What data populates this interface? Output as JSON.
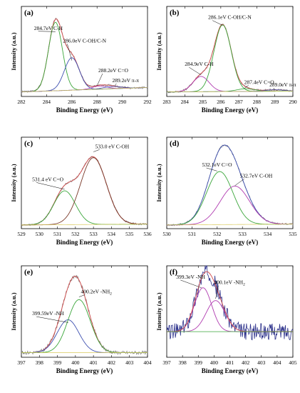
{
  "chart_data": [
    {
      "type": "line",
      "panel_label": "(a)",
      "xlabel": "Binding Energy (eV)",
      "ylabel": "Intensity (a.u.)",
      "xlim": [
        282,
        292
      ],
      "xticks": [
        "282",
        "284",
        "286",
        "288",
        "290",
        "292"
      ],
      "series": [
        {
          "name": "raw",
          "color": "#808080",
          "width": 0.7,
          "noise": 0.012,
          "peaks": [
            [
              284.7,
              0.76,
              0.55
            ],
            [
              286.0,
              0.36,
              0.6
            ],
            [
              288.2,
              0.035,
              0.6
            ],
            [
              289.2,
              0.025,
              0.7
            ]
          ],
          "baseline": [
            0.05,
            0.1
          ]
        },
        {
          "name": "envelope",
          "color": "#d24a4a",
          "width": 0.9,
          "peaks": [
            [
              284.7,
              0.76,
              0.55
            ],
            [
              286.0,
              0.36,
              0.6
            ],
            [
              288.2,
              0.035,
              0.6
            ],
            [
              289.2,
              0.025,
              0.7
            ]
          ],
          "baseline": [
            0.05,
            0.1
          ]
        },
        {
          "name": "C-H",
          "color": "#3aa63a",
          "width": 0.9,
          "peaks": [
            [
              284.7,
              0.76,
              0.55
            ]
          ],
          "baseline": [
            0.05,
            0.1
          ]
        },
        {
          "name": "C-OH/C-N",
          "color": "#3d4fb0",
          "width": 0.9,
          "peaks": [
            [
              286.0,
              0.36,
              0.6
            ]
          ],
          "baseline": [
            0.05,
            0.1
          ]
        },
        {
          "name": "C=O",
          "color": "#b03bb0",
          "width": 0.8,
          "peaks": [
            [
              288.2,
              0.035,
              0.6
            ]
          ],
          "baseline": [
            0.05,
            0.1
          ]
        },
        {
          "name": "π-π",
          "color": "#3d4fb0",
          "width": 0.8,
          "peaks": [
            [
              289.2,
              0.025,
              0.7
            ]
          ],
          "baseline": [
            0.05,
            0.1
          ]
        },
        {
          "name": "background",
          "color": "#d9c95a",
          "width": 0.7,
          "peaks": [],
          "baseline": [
            0.05,
            0.1
          ]
        }
      ],
      "annotations": [
        {
          "text": "284.7eV C-H",
          "x": 284.7,
          "y": 0.72,
          "tx": 283.0,
          "ty": 0.74
        },
        {
          "text": "286.0eV C-OH/C-N",
          "x": 286.0,
          "y": 0.4,
          "tx": 285.3,
          "ty": 0.6
        },
        {
          "text": "288.2eV C=O",
          "x": 288.0,
          "y": 0.12,
          "tx": 288.1,
          "ty": 0.27
        },
        {
          "text": "289.2eV π-π",
          "x": 289.4,
          "y": 0.12,
          "tx": 289.2,
          "ty": 0.16
        }
      ]
    },
    {
      "type": "line",
      "panel_label": "(b)",
      "xlabel": "Binding Energy (eV)",
      "ylabel": "Intensity (a.u.)",
      "xlim": [
        283,
        290
      ],
      "xticks": [
        "283",
        "284",
        "285",
        "286",
        "287",
        "288",
        "289",
        "290"
      ],
      "series": [
        {
          "name": "raw",
          "color": "#808080",
          "width": 0.7,
          "noise": 0.012,
          "peaks": [
            [
              284.9,
              0.17,
              0.45
            ],
            [
              286.1,
              0.74,
              0.48
            ],
            [
              287.4,
              0.03,
              0.5
            ],
            [
              289.0,
              0.015,
              0.5
            ]
          ],
          "baseline": [
            0.05,
            0.06
          ]
        },
        {
          "name": "envelope",
          "color": "#d24a4a",
          "width": 0.9,
          "peaks": [
            [
              284.9,
              0.17,
              0.45
            ],
            [
              286.1,
              0.74,
              0.48
            ],
            [
              287.4,
              0.03,
              0.5
            ],
            [
              289.0,
              0.015,
              0.5
            ]
          ],
          "baseline": [
            0.05,
            0.06
          ]
        },
        {
          "name": "C-H",
          "color": "#b03bb0",
          "width": 0.9,
          "peaks": [
            [
              284.9,
              0.17,
              0.45
            ]
          ],
          "baseline": [
            0.05,
            0.06
          ]
        },
        {
          "name": "C-OH/C-N",
          "color": "#3aa63a",
          "width": 0.9,
          "peaks": [
            [
              286.1,
              0.74,
              0.48
            ]
          ],
          "baseline": [
            0.05,
            0.06
          ]
        },
        {
          "name": "C=O",
          "color": "#3aa63a",
          "width": 0.8,
          "peaks": [
            [
              287.4,
              0.03,
              0.5
            ]
          ],
          "baseline": [
            0.05,
            0.06
          ]
        },
        {
          "name": "π-π",
          "color": "#3d4fb0",
          "width": 0.8,
          "peaks": [
            [
              289.0,
              0.015,
              0.5
            ]
          ],
          "baseline": [
            0.05,
            0.06
          ]
        },
        {
          "name": "background",
          "color": "#d9c95a",
          "width": 0.7,
          "peaks": [],
          "baseline": [
            0.05,
            0.06
          ]
        }
      ],
      "annotations": [
        {
          "text": "286.1eV C-OH/C-N",
          "x": 286.1,
          "y": 0.79,
          "tx": 285.3,
          "ty": 0.86
        },
        {
          "text": "284.9eV C-H",
          "x": 284.9,
          "y": 0.24,
          "tx": 284.0,
          "ty": 0.34
        },
        {
          "text": "287.4eV C=O",
          "x": 287.3,
          "y": 0.09,
          "tx": 287.3,
          "ty": 0.14
        },
        {
          "text": "289.0eV π-π",
          "x": 289.0,
          "y": 0.07,
          "tx": 288.7,
          "ty": 0.11
        }
      ]
    },
    {
      "type": "line",
      "panel_label": "(c)",
      "xlabel": "Binding Energy (eV)",
      "ylabel": "Intensity (a.u.)",
      "xlim": [
        529,
        536
      ],
      "xticks": [
        "529",
        "530",
        "531",
        "532",
        "533",
        "534",
        "535",
        "536"
      ],
      "series": [
        {
          "name": "raw",
          "color": "#808080",
          "width": 0.7,
          "noise": 0.01,
          "peaks": [
            [
              531.4,
              0.37,
              0.6
            ],
            [
              533.0,
              0.73,
              0.72
            ]
          ],
          "baseline": [
            0.04,
            0.05
          ]
        },
        {
          "name": "envelope",
          "color": "#d24a4a",
          "width": 0.9,
          "peaks": [
            [
              531.4,
              0.37,
              0.6
            ],
            [
              533.0,
              0.73,
              0.72
            ]
          ],
          "baseline": [
            0.04,
            0.05
          ]
        },
        {
          "name": "C=O",
          "color": "#3aa63a",
          "width": 0.9,
          "peaks": [
            [
              531.4,
              0.37,
              0.6
            ]
          ],
          "baseline": [
            0.04,
            0.05
          ]
        },
        {
          "name": "C-OH",
          "color": "#7a3a2a",
          "width": 0.9,
          "peaks": [
            [
              533.0,
              0.73,
              0.72
            ]
          ],
          "baseline": [
            0.04,
            0.05
          ]
        },
        {
          "name": "background",
          "color": "#d9c95a",
          "width": 0.7,
          "peaks": [],
          "baseline": [
            0.04,
            0.05
          ]
        }
      ],
      "annotations": [
        {
          "text": "533.0 eV C-OH",
          "x": 533.0,
          "y": 0.84,
          "tx": 533.1,
          "ty": 0.88
        },
        {
          "text": "531.4 eV C=O",
          "x": 531.4,
          "y": 0.43,
          "tx": 529.6,
          "ty": 0.52
        }
      ]
    },
    {
      "type": "line",
      "panel_label": "(d)",
      "xlabel": "Binding Energy (eV)",
      "ylabel": "Intensity (a.u.)",
      "xlim": [
        530,
        535
      ],
      "xticks": [
        "530",
        "531",
        "532",
        "533",
        "534",
        "535"
      ],
      "series": [
        {
          "name": "raw",
          "color": "#808080",
          "width": 0.7,
          "noise": 0.01,
          "peaks": [
            [
              532.1,
              0.58,
              0.52
            ],
            [
              532.7,
              0.42,
              0.58
            ]
          ],
          "baseline": [
            0.04,
            0.05
          ]
        },
        {
          "name": "envelope",
          "color": "#3d4fb0",
          "width": 0.9,
          "peaks": [
            [
              532.1,
              0.58,
              0.52
            ],
            [
              532.7,
              0.42,
              0.58
            ]
          ],
          "baseline": [
            0.04,
            0.05
          ]
        },
        {
          "name": "C=O",
          "color": "#3aa63a",
          "width": 0.9,
          "peaks": [
            [
              532.1,
              0.58,
              0.52
            ]
          ],
          "baseline": [
            0.04,
            0.05
          ]
        },
        {
          "name": "C-OH",
          "color": "#b03bb0",
          "width": 0.9,
          "peaks": [
            [
              532.7,
              0.42,
              0.58
            ]
          ],
          "baseline": [
            0.04,
            0.05
          ]
        },
        {
          "name": "background",
          "color": "#d9c95a",
          "width": 0.7,
          "peaks": [],
          "baseline": [
            0.04,
            0.05
          ]
        }
      ],
      "annotations": [
        {
          "text": "532.1eV C=O",
          "x": 532.0,
          "y": 0.63,
          "tx": 531.4,
          "ty": 0.68
        },
        {
          "text": "532.7eV C-OH",
          "x": 532.7,
          "y": 0.47,
          "tx": 532.9,
          "ty": 0.56
        }
      ]
    },
    {
      "type": "line",
      "panel_label": "(e)",
      "xlabel": "Binding Energy (eV)",
      "ylabel": "Intensity (a.u.)",
      "xlim": [
        397,
        404
      ],
      "xticks": [
        "397",
        "398",
        "399",
        "400",
        "401",
        "402",
        "403",
        "404"
      ],
      "series": [
        {
          "name": "raw",
          "color": "#808080",
          "width": 0.7,
          "noise": 0.02,
          "peaks": [
            [
              399.59,
              0.36,
              0.6
            ],
            [
              400.2,
              0.58,
              0.62
            ]
          ],
          "baseline": [
            0.05,
            0.05
          ]
        },
        {
          "name": "envelope",
          "color": "#d24a4a",
          "width": 0.9,
          "peaks": [
            [
              399.59,
              0.36,
              0.6
            ],
            [
              400.2,
              0.58,
              0.62
            ]
          ],
          "baseline": [
            0.05,
            0.05
          ]
        },
        {
          "name": "-NH",
          "color": "#3d4fb0",
          "width": 0.9,
          "peaks": [
            [
              399.59,
              0.36,
              0.6
            ]
          ],
          "baseline": [
            0.05,
            0.05
          ]
        },
        {
          "name": "-NH2",
          "color": "#3aa63a",
          "width": 0.9,
          "peaks": [
            [
              400.2,
              0.58,
              0.62
            ]
          ],
          "baseline": [
            0.05,
            0.05
          ]
        },
        {
          "name": "background",
          "color": "#d9c95a",
          "width": 0.7,
          "peaks": [],
          "baseline": [
            0.05,
            0.05
          ]
        }
      ],
      "annotations": [
        {
          "text": "400.2eV -NH",
          "sub": "2",
          "x": 400.2,
          "y": 0.66,
          "tx": 400.3,
          "ty": 0.7
        },
        {
          "text": "399.59eV -NH",
          "x": 399.6,
          "y": 0.38,
          "tx": 397.6,
          "ty": 0.46
        }
      ]
    },
    {
      "type": "line",
      "panel_label": "(f)",
      "xlabel": "Binding Energy (eV)",
      "ylabel": "Intensity (a.u.)",
      "xlim": [
        397,
        405
      ],
      "xticks": [
        "397",
        "398",
        "399",
        "400",
        "401",
        "402",
        "403",
        "404",
        "405"
      ],
      "series": [
        {
          "name": "raw",
          "color": "#2a2f8a",
          "width": 0.8,
          "noise": 0.09,
          "peaks": [
            [
              399.3,
              0.48,
              0.55
            ],
            [
              400.1,
              0.34,
              0.6
            ]
          ],
          "baseline": [
            0.28,
            0.28
          ]
        },
        {
          "name": "-NH",
          "color": "#b03bb0",
          "width": 0.9,
          "peaks": [
            [
              399.3,
              0.48,
              0.55
            ]
          ],
          "baseline": [
            0.28,
            0.28
          ]
        },
        {
          "name": "-NH2",
          "color": "#b03bb0",
          "width": 0.9,
          "peaks": [
            [
              400.1,
              0.34,
              0.6
            ]
          ],
          "baseline": [
            0.28,
            0.28
          ]
        },
        {
          "name": "envelope",
          "color": "#d24a4a",
          "width": 0.9,
          "peaks": [
            [
              399.3,
              0.48,
              0.55
            ],
            [
              400.1,
              0.34,
              0.6
            ]
          ],
          "baseline": [
            0.28,
            0.28
          ]
        },
        {
          "name": "background",
          "color": "#3aa63a",
          "width": 0.8,
          "peaks": [],
          "baseline": [
            0.28,
            0.28
          ]
        }
      ],
      "annotations": [
        {
          "text": "399.3eV -NH",
          "x": 399.2,
          "y": 0.76,
          "tx": 397.6,
          "ty": 0.86
        },
        {
          "text": "400.1eV -NH",
          "sub": "2",
          "x": 400.1,
          "y": 0.64,
          "tx": 400.0,
          "ty": 0.8
        }
      ]
    }
  ]
}
